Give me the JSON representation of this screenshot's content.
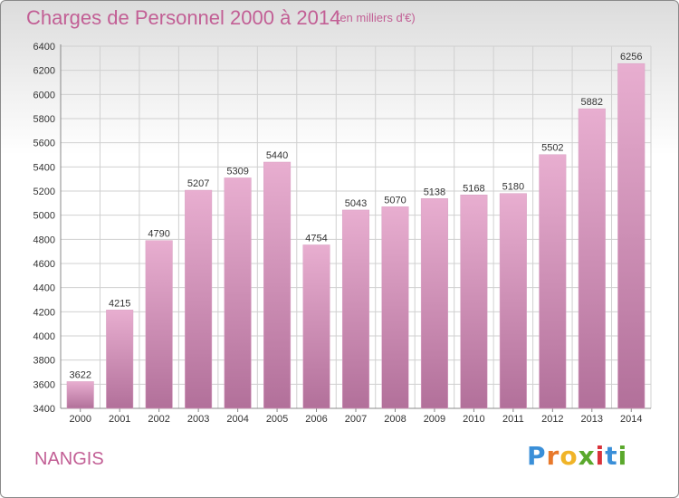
{
  "title": "Charges de Personnel 2000 à 2014",
  "subtitle": "(en milliers d'€)",
  "commune": "NANGIS",
  "logo_text": "Proxiti",
  "colors": {
    "title": "#c25f95",
    "bar": "#cc8bb3",
    "bar_light": "#e8aed0",
    "bar_dark": "#b2709a"
  },
  "chart_data": {
    "type": "bar",
    "title": "Charges de Personnel 2000 à 2014",
    "subtitle": "(en milliers d'€)",
    "categories": [
      "2000",
      "2001",
      "2002",
      "2003",
      "2004",
      "2005",
      "2006",
      "2007",
      "2008",
      "2009",
      "2010",
      "2011",
      "2012",
      "2013",
      "2014"
    ],
    "values": [
      3622,
      4215,
      4790,
      5207,
      5309,
      5440,
      4754,
      5043,
      5070,
      5138,
      5168,
      5180,
      5502,
      5882,
      6256
    ],
    "ylim": [
      3400,
      6400
    ],
    "yticks": [
      3400,
      3600,
      3800,
      4000,
      4200,
      4400,
      4600,
      4800,
      5000,
      5200,
      5400,
      5600,
      5800,
      6000,
      6200,
      6400
    ],
    "grid": true,
    "data_labels": true
  }
}
